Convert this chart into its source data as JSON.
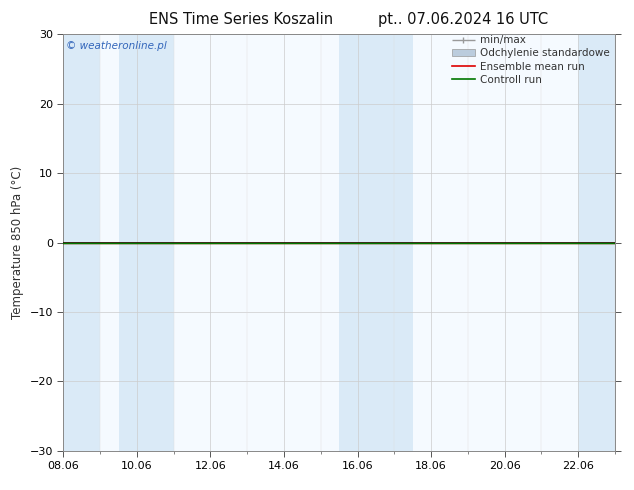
{
  "title_left": "ENS Time Series Koszalin",
  "title_right": "pt.. 07.06.2024 16 UTC",
  "ylabel": "Temperature 850 hPa (°C)",
  "watermark": "© weatheronline.pl",
  "ylim": [
    -30,
    30
  ],
  "yticks": [
    -30,
    -20,
    -10,
    0,
    10,
    20,
    30
  ],
  "xlim": [
    0,
    15
  ],
  "xtick_labels": [
    "08.06",
    "10.06",
    "12.06",
    "14.06",
    "16.06",
    "18.06",
    "20.06",
    "22.06"
  ],
  "xtick_positions": [
    0,
    2,
    4,
    6,
    8,
    10,
    12,
    14
  ],
  "shaded_spans": [
    [
      0,
      1
    ],
    [
      1.5,
      3
    ],
    [
      7.5,
      9.5
    ],
    [
      14,
      15
    ]
  ],
  "shaded_color": "#daeaf7",
  "zero_line_color": "#000000",
  "control_run_color": "#007700",
  "ensemble_mean_color": "#dd0000",
  "bg_color": "#ffffff",
  "plot_bg_color": "#f5faff",
  "legend_items": [
    {
      "label": "min/max",
      "color": "#999999"
    },
    {
      "label": "Odchylenie standardowe",
      "color": "#bbccdd"
    },
    {
      "label": "Ensemble mean run",
      "color": "#dd0000"
    },
    {
      "label": "Controll run",
      "color": "#007700"
    }
  ],
  "watermark_color": "#3366bb",
  "title_fontsize": 10.5,
  "tick_fontsize": 8,
  "ylabel_fontsize": 8.5,
  "legend_fontsize": 7.5
}
